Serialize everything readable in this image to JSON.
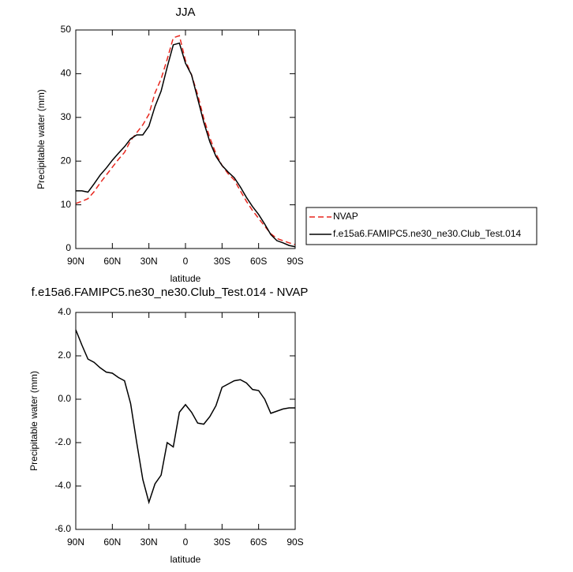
{
  "chart_data": [
    {
      "type": "line",
      "title": "JJA",
      "xlabel": "latitude",
      "ylabel": "Precipitable water (mm)",
      "x": [
        90,
        85,
        80,
        75,
        70,
        65,
        60,
        55,
        50,
        45,
        40,
        35,
        30,
        25,
        20,
        15,
        10,
        5,
        0,
        -5,
        -10,
        -15,
        -20,
        -25,
        -30,
        -35,
        -40,
        -45,
        -50,
        -55,
        -60,
        -65,
        -70,
        -75,
        -80,
        -85,
        -90
      ],
      "series": [
        {
          "name": "NVAP",
          "color": "#e8271e",
          "style": "dashed",
          "values": [
            10.3,
            10.8,
            11.4,
            13,
            15,
            16.8,
            18.6,
            20.4,
            22,
            24.7,
            26.5,
            28.3,
            30.7,
            35.6,
            38.8,
            43.3,
            48.2,
            48.7,
            43,
            39.7,
            35.2,
            29.8,
            25.3,
            21.7,
            19,
            17.1,
            15.7,
            13.2,
            10.8,
            8.7,
            6.9,
            5.1,
            3.4,
            2.3,
            1.8,
            1.3,
            0.9
          ]
        },
        {
          "name": "f.e15a6.FAMIPC5.ne30_ne30.Club_Test.014",
          "color": "#000000",
          "style": "solid",
          "values": [
            13.2,
            13.2,
            12.9,
            14.8,
            16.8,
            18.4,
            20.2,
            21.8,
            23.3,
            25.1,
            26,
            26,
            28,
            32.5,
            36,
            41.5,
            46.6,
            47,
            42.4,
            39.7,
            34.3,
            28.9,
            24.4,
            21.1,
            19,
            17.5,
            16.2,
            14.1,
            11.7,
            9.6,
            7.8,
            5.6,
            3.2,
            1.8,
            1.3,
            0.7,
            0.4
          ]
        }
      ],
      "xlim": [
        90,
        -90
      ],
      "xticks": [
        {
          "value": 90,
          "label": "90N"
        },
        {
          "value": 60,
          "label": "60N"
        },
        {
          "value": 30,
          "label": "30N"
        },
        0,
        {
          "value": -30,
          "label": "30S"
        },
        {
          "value": -60,
          "label": "60S"
        },
        {
          "value": -90,
          "label": "90S"
        }
      ],
      "ylim": [
        0,
        50
      ],
      "yticks": [
        0,
        10,
        20,
        30,
        40,
        50
      ]
    },
    {
      "type": "line",
      "title": "f.e15a6.FAMIPC5.ne30_ne30.Club_Test.014 - NVAP",
      "xlabel": "latitude",
      "ylabel": "Precipitable water (mm)",
      "x": [
        90,
        85,
        80,
        75,
        70,
        65,
        60,
        55,
        50,
        45,
        40,
        35,
        30,
        25,
        20,
        15,
        10,
        5,
        0,
        -5,
        -10,
        -15,
        -20,
        -25,
        -30,
        -35,
        -40,
        -45,
        -50,
        -55,
        -60,
        -65,
        -70,
        -75,
        -80,
        -85,
        -90
      ],
      "values": [
        3.2,
        2.5,
        1.85,
        1.7,
        1.45,
        1.25,
        1.2,
        1,
        0.85,
        -0.2,
        -2,
        -3.7,
        -4.75,
        -3.9,
        -3.5,
        -2,
        -2.2,
        -0.6,
        -0.25,
        -0.6,
        -1.1,
        -1.15,
        -0.8,
        -0.3,
        0.55,
        0.7,
        0.85,
        0.9,
        0.75,
        0.45,
        0.4,
        0,
        -0.65,
        -0.55,
        -0.45,
        -0.4,
        -0.4
      ],
      "color": "#000000",
      "xlim": [
        90,
        -90
      ],
      "xticks": [
        {
          "value": 90,
          "label": "90N"
        },
        {
          "value": 60,
          "label": "60N"
        },
        {
          "value": 30,
          "label": "30N"
        },
        0,
        {
          "value": -30,
          "label": "30S"
        },
        {
          "value": -60,
          "label": "60S"
        },
        {
          "value": -90,
          "label": "90S"
        }
      ],
      "ylim": [
        -6,
        4
      ],
      "yticks": [
        {
          "value": 4,
          "label": "4.0"
        },
        {
          "value": 2,
          "label": "2.0"
        },
        {
          "value": 0,
          "label": "0.0"
        },
        {
          "value": -2,
          "label": "-2.0"
        },
        {
          "value": -4,
          "label": "-4.0"
        },
        {
          "value": -6,
          "label": "-6.0"
        }
      ]
    }
  ]
}
